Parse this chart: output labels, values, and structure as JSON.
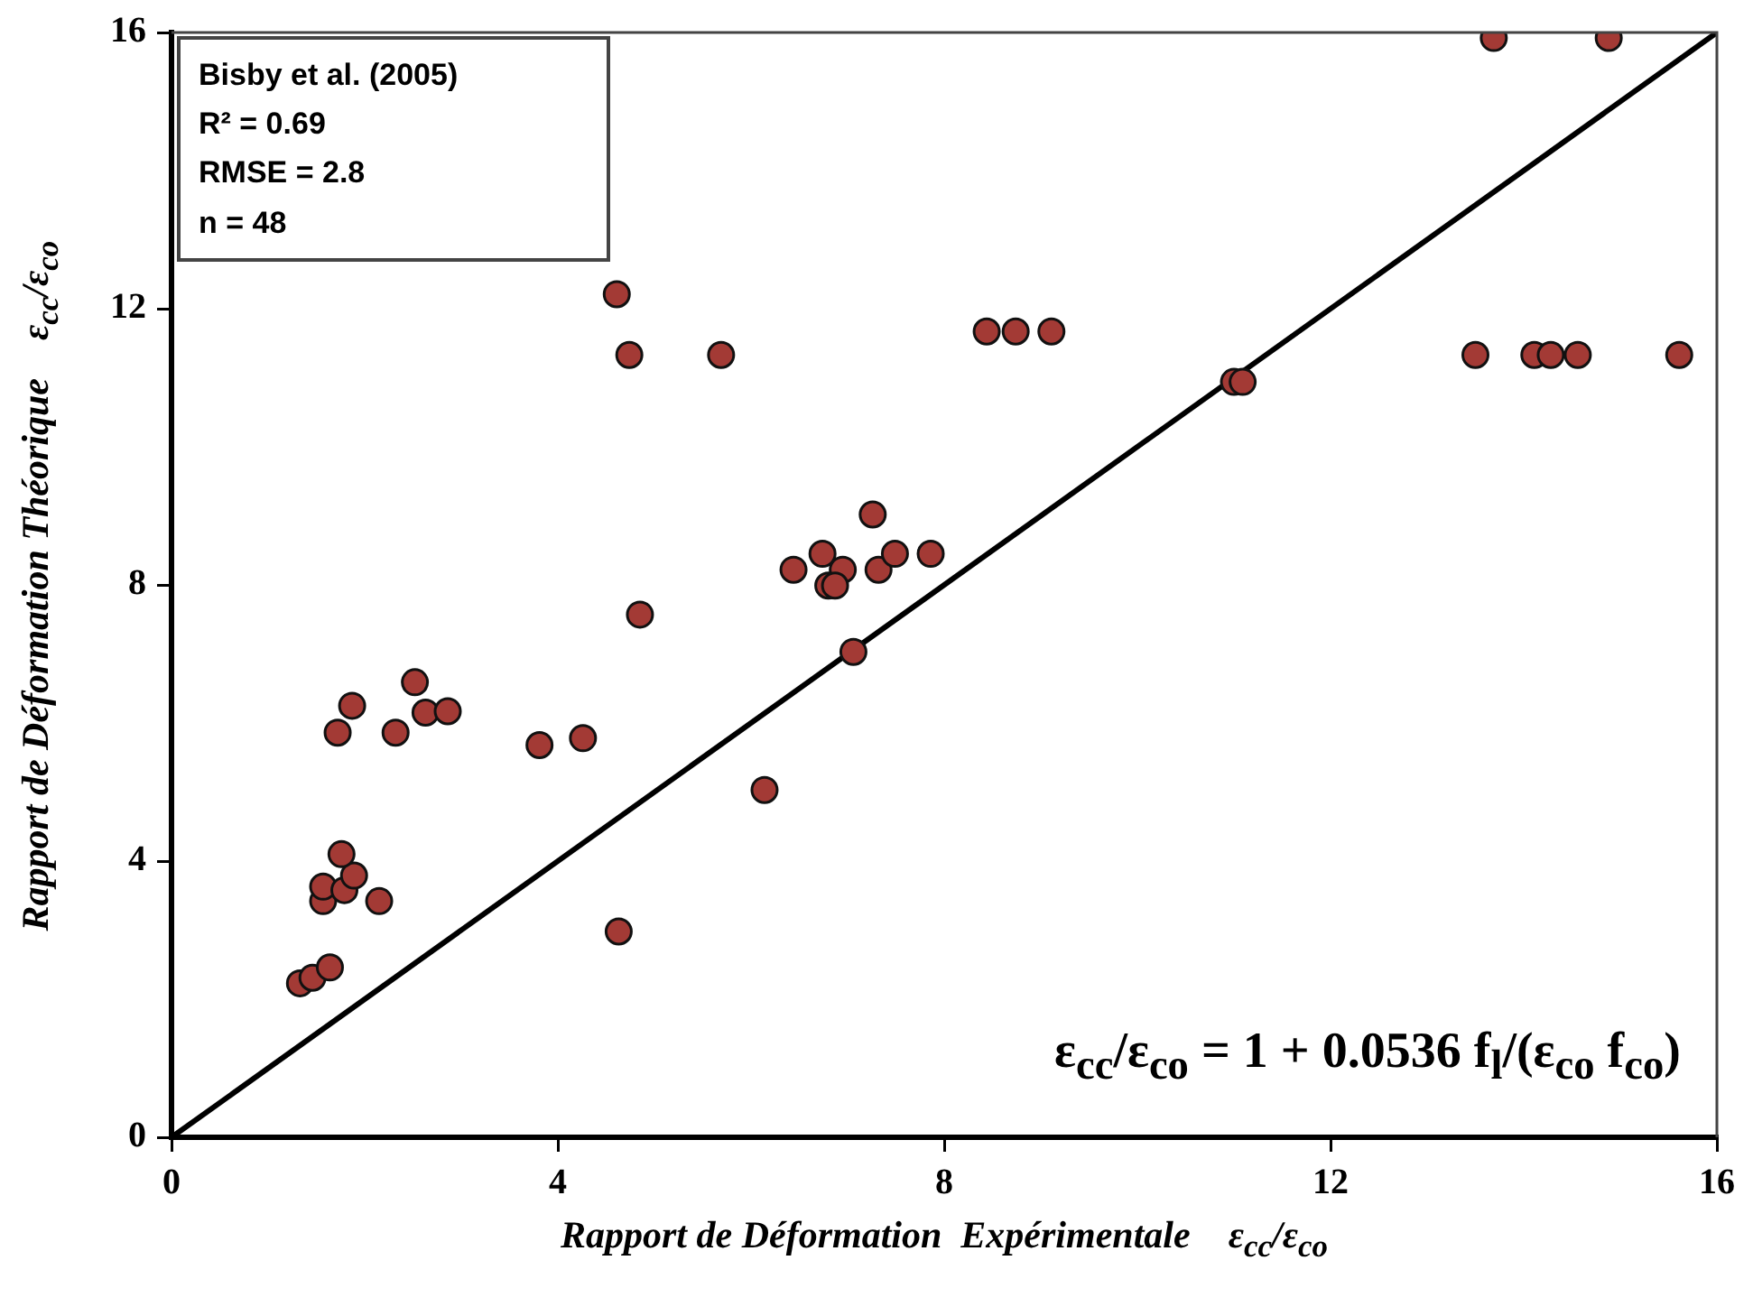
{
  "chart_data": {
    "type": "scatter",
    "xlabel": "Rapport de Déformation  Expérimentale    ε$_{cc}$/ε$_{co}$",
    "ylabel": "Rapport de Déformation Théorique    ε$_{cc}$/ε$_{co}$",
    "xlim": [
      0,
      16
    ],
    "ylim": [
      0,
      16
    ],
    "xticks": [
      0,
      4,
      8,
      12,
      16
    ],
    "yticks": [
      0,
      4,
      8,
      12,
      16
    ],
    "grid": false,
    "legend": false,
    "marker": "circle",
    "annotations": [
      "Bisby et al. (2005)",
      "R² = 0.69",
      "RMSE = 2.8",
      "n = 48",
      "ε$_{cc}$/ε$_{co}$ = 1 + 0.0536 f$_{l}$/(ε$_{co}$ f$_{co}$)"
    ],
    "series": [
      {
        "color": "#a33a35",
        "x": [
          1.33,
          1.46,
          1.64,
          1.57,
          1.57,
          1.79,
          1.89,
          1.76,
          2.15,
          1.72,
          1.87,
          2.32,
          2.52,
          2.63,
          2.86,
          3.81,
          4.26,
          4.63,
          4.85,
          6.14,
          7.06,
          6.44,
          6.74,
          6.95,
          6.8,
          6.87,
          7.32,
          7.49,
          7.86,
          7.26,
          4.61,
          4.74,
          5.69,
          8.44,
          8.74,
          9.11,
          11.0,
          11.09,
          13.69,
          14.88,
          13.5,
          14.11,
          14.28,
          14.56,
          15.61
        ],
        "values": [
          2.23,
          2.31,
          2.46,
          3.42,
          3.63,
          3.58,
          3.79,
          4.1,
          3.42,
          5.86,
          6.25,
          5.86,
          6.59,
          6.15,
          6.17,
          5.68,
          5.78,
          2.98,
          7.57,
          5.03,
          7.03,
          8.22,
          8.45,
          8.22,
          7.99,
          7.99,
          8.22,
          8.45,
          8.45,
          9.02,
          12.21,
          11.33,
          11.33,
          11.67,
          11.67,
          11.67,
          10.94,
          10.94,
          15.92,
          15.92,
          11.33,
          11.33,
          11.33,
          11.33,
          11.33
        ]
      },
      {
        "type": "line",
        "color": "#000000",
        "x": [
          0,
          16
        ],
        "values": [
          0,
          16
        ],
        "marker": "none"
      }
    ]
  }
}
